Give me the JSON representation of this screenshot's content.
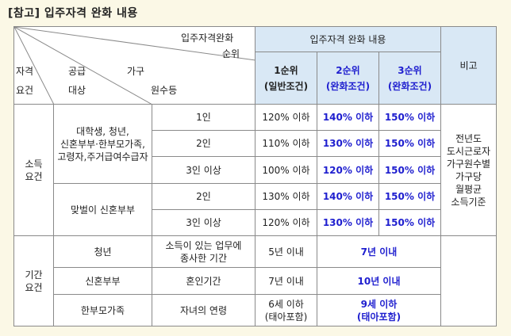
{
  "title": "[참고] 입주자격 완화 내용",
  "header": {
    "diag_top_right": "입주자격완화",
    "diag_top_right2": "순위",
    "diag_left": [
      "자격",
      "요건"
    ],
    "diag_mid_a": "공급",
    "diag_mid_b": "대상",
    "diag_mid_c": "가구",
    "diag_mid_d": "원수등",
    "group_header": "입주자격 완화 내용",
    "rank1": "1순위",
    "rank1_sub": "(일반조건)",
    "rank2": "2순위",
    "rank2_sub": "(완화조건)",
    "rank3": "3순위",
    "rank3_sub": "(완화조건)",
    "note_header": "비고"
  },
  "income": {
    "label": [
      "소득",
      "요건"
    ],
    "groupA_label": [
      "대학생, 청년,",
      "신혼부부·한부모가족,",
      "고령자,주거급여수급자"
    ],
    "groupA_rows": [
      {
        "size": "1인",
        "r1": "120% 이하",
        "r2": "140% 이하",
        "r3": "150% 이하"
      },
      {
        "size": "2인",
        "r1": "110% 이하",
        "r2": "130% 이하",
        "r3": "150% 이하"
      },
      {
        "size": "3인 이상",
        "r1": "100% 이하",
        "r2": "120% 이하",
        "r3": "150% 이하"
      }
    ],
    "groupB_label": "맞벌이 신혼부부",
    "groupB_rows": [
      {
        "size": "2인",
        "r1": "130% 이하",
        "r2": "140% 이하",
        "r3": "150% 이하"
      },
      {
        "size": "3인 이상",
        "r1": "120% 이하",
        "r2": "130% 이하",
        "r3": "150% 이하"
      }
    ],
    "note": [
      "전년도",
      "도시근로자",
      "가구원수별",
      "가구당",
      "월평균",
      "소득기준"
    ]
  },
  "period": {
    "label": [
      "기간",
      "요건"
    ],
    "rows": [
      {
        "target": "청년",
        "criterion": [
          "소득이 있는 업무에",
          "종사한 기간"
        ],
        "r1": [
          "5년 이내"
        ],
        "relaxed": [
          "7년 이내"
        ]
      },
      {
        "target": "신혼부부",
        "criterion": [
          "혼인기간"
        ],
        "r1": [
          "7년 이내"
        ],
        "relaxed": [
          "10년 이내"
        ]
      },
      {
        "target": "한부모가족",
        "criterion": [
          "자녀의 연령"
        ],
        "r1": [
          "6세 이하",
          "(태아포함)"
        ],
        "relaxed": [
          "9세 이하",
          "(태아포함)"
        ]
      }
    ]
  }
}
